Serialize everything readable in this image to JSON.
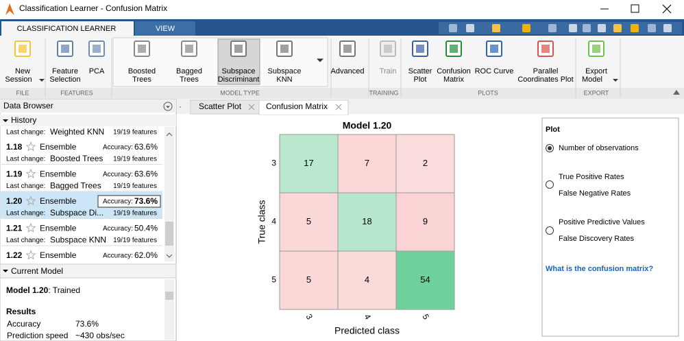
{
  "window": {
    "title": "Classification Learner - Confusion Matrix"
  },
  "ribbon": {
    "tabs": [
      "CLASSIFICATION LEARNER",
      "VIEW"
    ],
    "buttons": [
      {
        "lines": [
          "New",
          "Session"
        ]
      },
      {
        "lines": [
          "Feature",
          "Selection"
        ]
      },
      {
        "lines": [
          "PCA"
        ]
      },
      {
        "lines": [
          "Boosted",
          "Trees"
        ]
      },
      {
        "lines": [
          "Bagged",
          "Trees"
        ]
      },
      {
        "lines": [
          "Subspace",
          "Discriminant"
        ]
      },
      {
        "lines": [
          "Subspace",
          "KNN"
        ]
      },
      {
        "lines": [
          "Advanced"
        ]
      },
      {
        "lines": [
          "Train"
        ]
      },
      {
        "lines": [
          "Scatter",
          "Plot"
        ]
      },
      {
        "lines": [
          "Confusion",
          "Matrix"
        ]
      },
      {
        "lines": [
          "ROC Curve"
        ]
      },
      {
        "lines": [
          "Parallel",
          "Coordinates Plot"
        ]
      },
      {
        "lines": [
          "Export",
          "Model"
        ]
      }
    ],
    "sections": [
      "FILE",
      "FEATURES",
      "MODEL TYPE",
      "TRAINING",
      "PLOTS",
      "EXPORT"
    ]
  },
  "data_browser": {
    "title": "Data Browser",
    "history": {
      "title": "History",
      "change_label": "Last change:",
      "accuracy_label": "Accuracy:",
      "items": [
        {
          "change": "Weighted KNN",
          "features": "19/19 features"
        },
        {
          "id": "1.18",
          "kind": "Ensemble",
          "accuracy": "63.6%",
          "change": "Boosted Trees",
          "features": "19/19 features"
        },
        {
          "id": "1.19",
          "kind": "Ensemble",
          "accuracy": "63.6%",
          "change": "Bagged Trees",
          "features": "19/19 features"
        },
        {
          "id": "1.20",
          "kind": "Ensemble",
          "accuracy": "73.6%",
          "change": "Subspace Di...",
          "features": "19/19 features"
        },
        {
          "id": "1.21",
          "kind": "Ensemble",
          "accuracy": "50.4%",
          "change": "Subspace KNN",
          "features": "19/19 features"
        },
        {
          "id": "1.22",
          "kind": "Ensemble",
          "accuracy": "62.0%"
        }
      ]
    }
  },
  "current_model": {
    "title": "Current Model",
    "model_name": "Model 1.20",
    "status": ": Trained",
    "results_title": "Results",
    "rows": [
      [
        "Accuracy",
        "73.6%"
      ],
      [
        "Prediction speed",
        "~430 obs/sec"
      ]
    ]
  },
  "document_tabs": [
    "Scatter Plot",
    "Confusion Matrix"
  ],
  "confusion_matrix": {
    "type": "heatmap",
    "title": "Model 1.20",
    "xlabel": "Predicted class",
    "ylabel": "True class",
    "classes": [
      "3",
      "4",
      "5"
    ],
    "values": [
      [
        17,
        7,
        2
      ],
      [
        5,
        18,
        9
      ],
      [
        5,
        4,
        54
      ]
    ]
  },
  "plot_options": {
    "title": "Plot",
    "options": [
      {
        "lines": [
          "Number of observations"
        ]
      },
      {
        "lines": [
          "True Positive Rates",
          "False Negative Rates"
        ]
      },
      {
        "lines": [
          "Positive Predictive Values",
          "False Discovery Rates"
        ]
      }
    ],
    "link": "What is the confusion matrix?"
  }
}
